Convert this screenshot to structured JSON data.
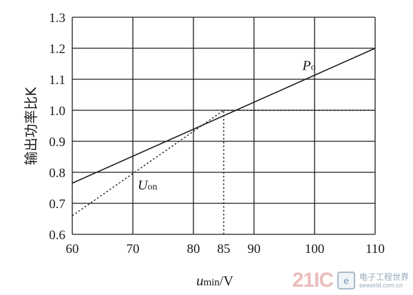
{
  "chart_data": {
    "type": "line",
    "xlim": [
      60,
      110
    ],
    "ylim": [
      0.6,
      1.3
    ],
    "x_ticks": [
      60,
      70,
      80,
      85,
      90,
      100,
      110
    ],
    "y_ticks": [
      0.6,
      0.7,
      0.8,
      0.9,
      1.0,
      1.1,
      1.2,
      1.3
    ],
    "x_tick_labels": [
      "60",
      "70",
      "80",
      "85",
      "90",
      "100",
      "110"
    ],
    "y_tick_labels": [
      "0.6",
      "0.7",
      "0.8",
      "0.9",
      "1.0",
      "1.1",
      "1.2",
      "1.3"
    ],
    "grid": true,
    "ylabel": "输出功率比K",
    "xlabel": {
      "main": "u",
      "sub": "min",
      "unit": "/V"
    },
    "series": [
      {
        "name": "Po",
        "style": "solid",
        "x": [
          60,
          110
        ],
        "y": [
          0.765,
          1.2
        ]
      },
      {
        "name": "Uon",
        "style": "dotted",
        "x": [
          60,
          85
        ],
        "y": [
          0.66,
          1.0
        ]
      },
      {
        "name": "",
        "style": "dotted",
        "x": [
          85,
          110
        ],
        "y": [
          1.0,
          1.0
        ]
      },
      {
        "name": "",
        "style": "dotted",
        "x": [
          85,
          85
        ],
        "y": [
          0.6,
          1.0
        ]
      }
    ],
    "annotations": [
      {
        "main": "P",
        "sub": "o",
        "x": 98,
        "y": 1.13
      },
      {
        "main": "U",
        "sub": "on",
        "x": 70.8,
        "y": 0.745
      }
    ]
  },
  "watermark": {
    "number": "21IC",
    "logo": "e",
    "cn": "电子工程世界",
    "url": "eeworld.com.cn"
  },
  "colors": {
    "line": "#1a1a1a",
    "grid": "#1a1a1a"
  }
}
